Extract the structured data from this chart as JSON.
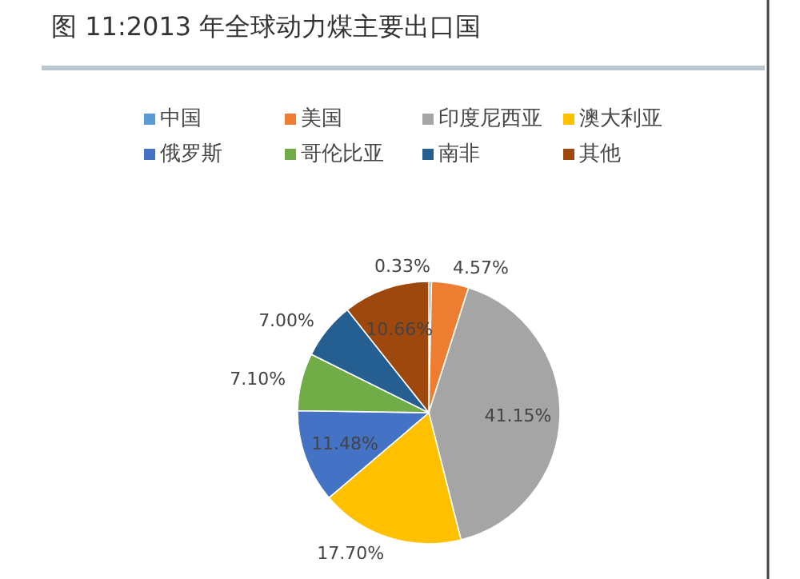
{
  "chart_data": {
    "type": "pie",
    "title": "图 11:2013 年全球动力煤主要出口国",
    "categories": [
      "中国",
      "美国",
      "印度尼西亚",
      "澳大利亚",
      "俄罗斯",
      "哥伦比亚",
      "南非",
      "其他"
    ],
    "values": [
      0.33,
      4.57,
      41.15,
      17.7,
      11.48,
      7.1,
      7.0,
      10.66
    ],
    "value_labels": [
      "0.33%",
      "4.57%",
      "41.15%",
      "17.70%",
      "11.48%",
      "7.10%",
      "7.00%",
      "10.66%"
    ],
    "colors": [
      "#5b9bd5",
      "#ed7d31",
      "#a5a5a5",
      "#ffc000",
      "#4472c4",
      "#70ad47",
      "#255e91",
      "#9e480e"
    ],
    "legend": "top"
  }
}
